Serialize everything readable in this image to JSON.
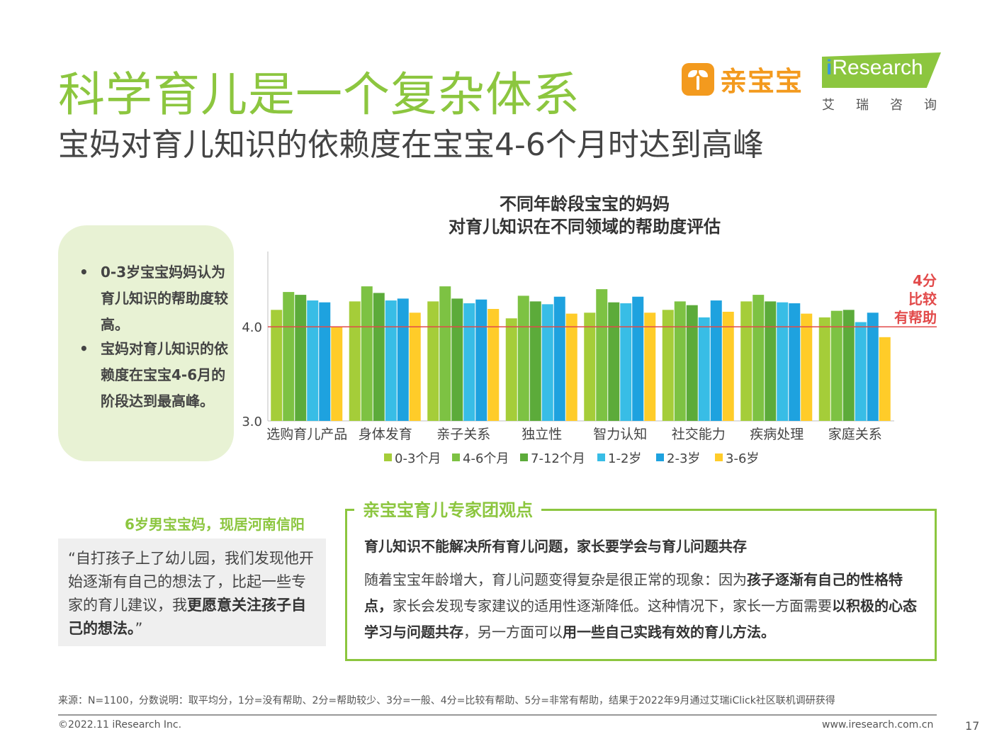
{
  "header": {
    "title": "科学育儿是一个复杂体系",
    "subtitle": "宝妈对育儿知识的依赖度在宝宝4-6个月时达到高峰",
    "logo_qbb": "亲宝宝",
    "logo_ir": "Research",
    "logo_ir_i": "i",
    "logo_ir_sub": "艾瑞咨询"
  },
  "insights": {
    "bullet_char": "•",
    "items": [
      "0-3岁宝宝妈妈认为育儿知识的帮助度较高。",
      "宝妈对育儿知识的依赖度在宝宝4-6月的阶段达到最高峰。"
    ]
  },
  "annotation": {
    "line1": "4分",
    "line2": "比较",
    "line3": "有帮助"
  },
  "chart_data": {
    "type": "bar",
    "title": "不同年龄段宝宝的妈妈",
    "subtitle": "对育儿知识在不同领域的帮助度评估",
    "xlabel": "",
    "ylabel": "",
    "ylim": [
      3.0,
      4.8
    ],
    "yticks": [
      "3.0",
      "4.0"
    ],
    "reference_line": 4.0,
    "categories": [
      "选购育儿产品",
      "身体发育",
      "亲子关系",
      "独立性",
      "智力认知",
      "社交能力",
      "疾病处理",
      "家庭关系"
    ],
    "series": [
      {
        "name": "0-3个月",
        "color": "#a5cd39",
        "values": [
          4.18,
          4.27,
          4.27,
          4.09,
          4.15,
          4.18,
          4.27,
          4.1
        ]
      },
      {
        "name": "4-6个月",
        "color": "#7dc243",
        "values": [
          4.37,
          4.43,
          4.43,
          4.33,
          4.4,
          4.27,
          4.34,
          4.17
        ]
      },
      {
        "name": "7-12个月",
        "color": "#5cab3a",
        "values": [
          4.34,
          4.36,
          4.3,
          4.27,
          4.26,
          4.23,
          4.27,
          4.18
        ]
      },
      {
        "name": "1-2岁",
        "color": "#38bde6",
        "values": [
          4.28,
          4.28,
          4.25,
          4.24,
          4.25,
          4.1,
          4.26,
          4.05
        ]
      },
      {
        "name": "2-3岁",
        "color": "#1ea2df",
        "values": [
          4.26,
          4.3,
          4.29,
          4.32,
          4.32,
          4.28,
          4.25,
          4.15
        ]
      },
      {
        "name": "3-6岁",
        "color": "#ffcc29",
        "values": [
          4.0,
          4.15,
          4.19,
          4.14,
          4.15,
          4.16,
          4.14,
          3.89
        ]
      }
    ],
    "legend_position": "bottom",
    "grid": false,
    "reference_color": "#e24a4a"
  },
  "quote": {
    "label": "6岁男宝宝妈，现居河南信阳",
    "text_plain": "“自打孩子上了幼儿园，我们发现他开始逐渐有自己的想法了，比起一些专家的育儿建议，我",
    "text_bold": "更愿意关注孩子自己的想法。",
    "text_end": "”"
  },
  "expert": {
    "header": "亲宝宝育儿专家团观点",
    "headline": "育儿知识不能解决所有育儿问题，家长要学会与育儿问题共存",
    "p1": "随着宝宝年龄增大，育儿问题变得复杂是很正常的现象：因为",
    "b1": "孩子逐渐有自己的性格特点，",
    "p2": "家长会发现专家建议的适用性逐渐降低。这种情况下，家长一方面需要",
    "b2": "以积极的心态学习与问题共存",
    "p3": "，另一方面可以",
    "b3": "用一些自己实践有效的育儿方法。"
  },
  "footer": {
    "source": "来源：N=1100，分数说明：取平均分，1分=没有帮助、2分=帮助较少、3分=一般、4分=比较有帮助、5分=非常有帮助，结果于2022年9月通过艾瑞iClick社区联机调研获得",
    "copyright": "©2022.11 iResearch Inc.",
    "website": "www.iresearch.com.cn",
    "page": "17"
  }
}
